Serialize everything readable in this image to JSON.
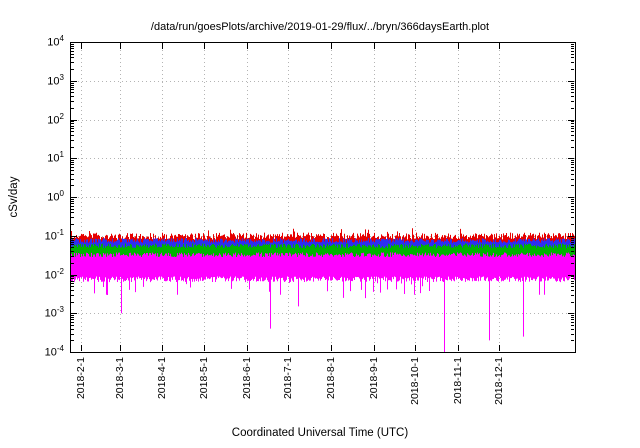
{
  "chart_data": {
    "type": "line",
    "title": "/data/run/goesPlots/archive/2019-01-29/flux/../bryn/366daysEarth.plot",
    "xlabel": "Coordinated Universal Time (UTC)",
    "ylabel": "cSv/day",
    "y_scale": "log10",
    "ylim": [
      0.0001,
      10000
    ],
    "ylim_exponents": [
      -4,
      4
    ],
    "y_tick_base": "10",
    "y_ticks_exponents": [
      4,
      3,
      2,
      1,
      0,
      -1,
      -2,
      -3,
      -4
    ],
    "x_days_total": 366,
    "x_ticks": [
      {
        "label": "2018-2-1",
        "day": 8
      },
      {
        "label": "2018-3-1",
        "day": 36
      },
      {
        "label": "2018-4-1",
        "day": 67
      },
      {
        "label": "2018-5-1",
        "day": 97
      },
      {
        "label": "2018-6-1",
        "day": 128
      },
      {
        "label": "2018-7-1",
        "day": 158
      },
      {
        "label": "2018-8-1",
        "day": 189
      },
      {
        "label": "2018-9-1",
        "day": 220
      },
      {
        "label": "2018-10-1",
        "day": 250
      },
      {
        "label": "2018-11-1",
        "day": 281
      },
      {
        "label": "2018-12-1",
        "day": 311
      }
    ],
    "grid": true,
    "legend": "none",
    "colors": {
      "background": "#ffffff",
      "axis": "#000000",
      "grid": "#b4b4b4"
    },
    "series": [
      {
        "name": "flux-red",
        "color": "#e60000",
        "log_top": -1.1,
        "log_top_jitter": 0.18,
        "log_bottom": -1.52,
        "log_bottom_jitter": 0.07,
        "spike_prob": 0.05,
        "spike_extra": 0.16
      },
      {
        "name": "flux-blue",
        "color": "#2e2ef0",
        "log_top": -1.18,
        "log_top_jitter": 0.12,
        "log_bottom": -1.58,
        "log_bottom_jitter": 0.06
      },
      {
        "name": "flux-green",
        "color": "#00b200",
        "log_top": -1.32,
        "log_top_jitter": 0.12,
        "log_bottom": -1.7,
        "log_bottom_jitter": 0.08
      },
      {
        "name": "flux-magenta",
        "color": "#ff00ff",
        "log_top": -1.55,
        "log_top_jitter": 0.12,
        "log_bottom": -2.05,
        "log_bottom_jitter": 0.15,
        "dip_prob": 0.06,
        "dip_extra": 0.5,
        "down_spikes": [
          {
            "day": 26,
            "value": 0.003
          },
          {
            "day": 37,
            "value": 0.001
          },
          {
            "day": 43,
            "value": 0.004
          },
          {
            "day": 47,
            "value": 0.0035
          },
          {
            "day": 145,
            "value": 0.0004
          },
          {
            "day": 152,
            "value": 0.003
          },
          {
            "day": 165,
            "value": 0.0015
          },
          {
            "day": 198,
            "value": 0.0025
          },
          {
            "day": 249,
            "value": 0.003
          },
          {
            "day": 271,
            "value": 0.0001
          },
          {
            "day": 304,
            "value": 0.0002
          },
          {
            "day": 328,
            "value": 0.00025
          },
          {
            "day": 340,
            "value": 0.003
          }
        ]
      }
    ]
  }
}
